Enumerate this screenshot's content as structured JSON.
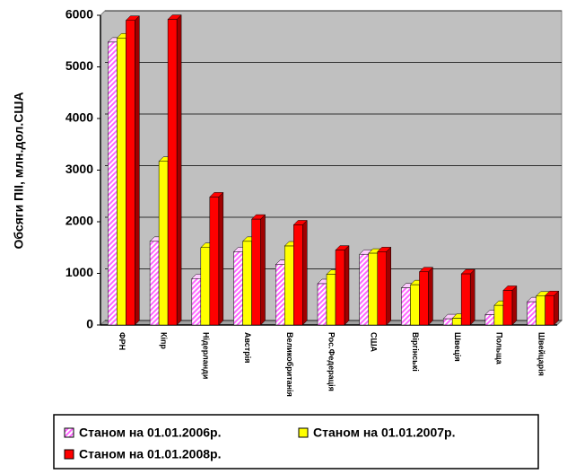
{
  "chart_data": {
    "type": "bar",
    "y_label": "Обсяги ПІІ, млн.дол.США",
    "categories": [
      "ФРН",
      "Кіпр",
      "Нідерланди",
      "Австрія",
      "Великобританія",
      "Рос.Федерація",
      "США",
      "Віргінські",
      "Швеція",
      "Польща",
      "Швейцарія"
    ],
    "series": [
      {
        "name": "Станом на 01.01.2006р.",
        "color": "#ff66ff",
        "values": [
          5480,
          1620,
          900,
          1420,
          1170,
          800,
          1370,
          720,
          120,
          200,
          450
        ]
      },
      {
        "name": "Станом на 01.01.2007р.",
        "color": "#ffff00",
        "values": [
          5560,
          3170,
          1500,
          1620,
          1530,
          980,
          1390,
          780,
          130,
          380,
          560
        ]
      },
      {
        "name": "Станом на 01.01.2008р.",
        "color": "#ff0000",
        "values": [
          5900,
          5920,
          2480,
          2050,
          1940,
          1450,
          1420,
          1030,
          990,
          670,
          570
        ]
      }
    ],
    "ylim": [
      0,
      6000
    ],
    "yticks": [
      0,
      1000,
      2000,
      3000,
      4000,
      5000,
      6000
    ],
    "grid": true
  }
}
